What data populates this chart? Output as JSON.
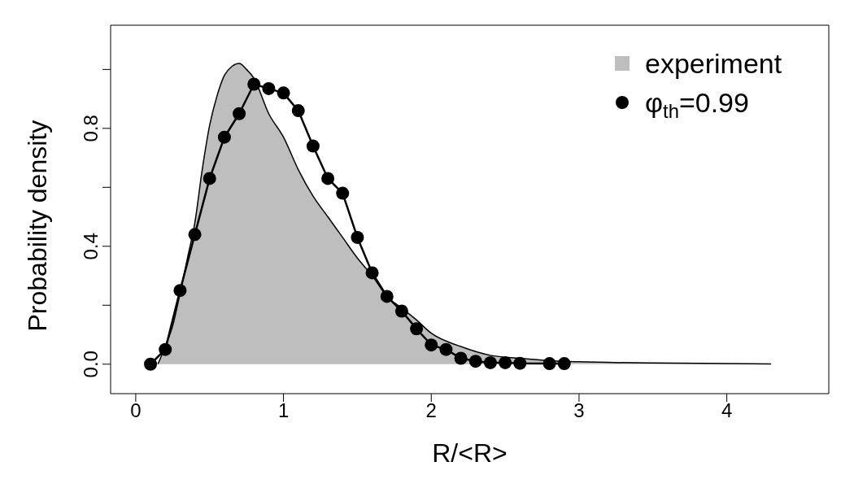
{
  "chart_data": {
    "type": "line",
    "xlabel": "R/<R>",
    "ylabel": "Probability density",
    "xlim": [
      -0.17,
      4.69
    ],
    "ylim": [
      -0.1,
      1.15
    ],
    "xticks": [
      0,
      1,
      2,
      3,
      4
    ],
    "yticks": [
      {
        "value": 0,
        "label": "0.0"
      },
      {
        "value": 0.2,
        "label": null
      },
      {
        "value": 0.4,
        "label": "0.4"
      },
      {
        "value": 0.6,
        "label": null
      },
      {
        "value": 0.8,
        "label": "0.8"
      },
      {
        "value": 1.0,
        "label": null
      }
    ],
    "grid": false,
    "legend": "top right",
    "line_style": "solid",
    "series": [
      {
        "name": "experiment",
        "type": "area",
        "color": "#bebebe",
        "x": [
          0.15,
          0.2,
          0.25,
          0.3,
          0.35,
          0.4,
          0.45,
          0.5,
          0.55,
          0.6,
          0.65,
          0.7,
          0.75,
          0.8,
          0.9,
          1.0,
          1.1,
          1.2,
          1.3,
          1.4,
          1.5,
          1.6,
          1.7,
          1.8,
          1.9,
          2.0,
          2.2,
          2.4,
          2.6,
          2.8,
          3.0,
          3.5,
          4.0,
          4.3
        ],
        "values": [
          0,
          0.06,
          0.13,
          0.24,
          0.36,
          0.48,
          0.66,
          0.81,
          0.91,
          0.98,
          1.01,
          1.02,
          1.0,
          0.97,
          0.85,
          0.77,
          0.66,
          0.57,
          0.5,
          0.43,
          0.36,
          0.3,
          0.23,
          0.19,
          0.15,
          0.105,
          0.06,
          0.03,
          0.02,
          0.012,
          0.008,
          0.004,
          0.002,
          0.001
        ]
      },
      {
        "name": "φ$_{th}$=0.99",
        "marker": "circle",
        "color": "#000000",
        "x": [
          0.1,
          0.2,
          0.3,
          0.4,
          0.5,
          0.6,
          0.7,
          0.8,
          0.9,
          1.0,
          1.1,
          1.2,
          1.3,
          1.4,
          1.5,
          1.6,
          1.7,
          1.8,
          1.9,
          2.0,
          2.1,
          2.2,
          2.3,
          2.4,
          2.5,
          2.6,
          2.8,
          2.9
        ],
        "values": [
          0,
          0.05,
          0.25,
          0.44,
          0.63,
          0.77,
          0.85,
          0.95,
          0.935,
          0.92,
          0.86,
          0.74,
          0.63,
          0.58,
          0.43,
          0.31,
          0.23,
          0.18,
          0.12,
          0.065,
          0.05,
          0.02,
          0.01,
          0.005,
          0.005,
          0.003,
          0.002,
          0.002
        ]
      }
    ]
  }
}
